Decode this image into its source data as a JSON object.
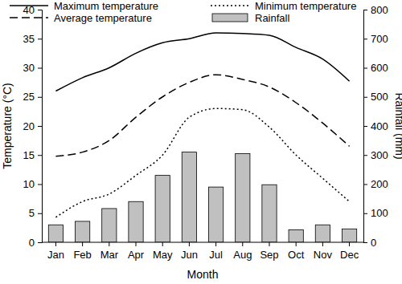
{
  "chart_data": {
    "type": "bar",
    "x_label": "Month",
    "y_label": "Temperature (°C)",
    "y2_label": "Rainfall (mm)",
    "categories": [
      "Jan",
      "Feb",
      "Mar",
      "Apr",
      "May",
      "Jun",
      "Jul",
      "Aug",
      "Sep",
      "Oct",
      "Nov",
      "Dec"
    ],
    "series": [
      {
        "name": "Maximum temperature",
        "type": "line",
        "color": "#000000",
        "line_style": "solid",
        "values": [
          26,
          28.3,
          30,
          32.5,
          34.3,
          35,
          36,
          35.9,
          35.6,
          33.5,
          31.5,
          27.7
        ]
      },
      {
        "name": "Average temperature",
        "type": "line",
        "color": "#000000",
        "line_style": "dashed",
        "values": [
          14.8,
          15.5,
          17.5,
          21.5,
          25,
          27.5,
          28.8,
          28,
          26.7,
          24,
          20.5,
          16.5
        ]
      },
      {
        "name": "Minimum temperature",
        "type": "line",
        "color": "#000000",
        "line_style": "dotted",
        "values": [
          4.3,
          7,
          8.3,
          11.5,
          15,
          21.5,
          23,
          22.8,
          19.8,
          15,
          11,
          7
        ]
      },
      {
        "name": "Rainfall",
        "type": "bar",
        "color": "#c0c0c0",
        "axis": "y2",
        "values": [
          60,
          72,
          116,
          140,
          230,
          310,
          190,
          305,
          198,
          43,
          60,
          46
        ]
      }
    ],
    "ylim": [
      0,
      40
    ],
    "yticks": [
      0,
      5,
      10,
      15,
      20,
      25,
      30,
      35,
      40
    ],
    "y2lim": [
      0,
      800
    ],
    "y2ticks": [
      0,
      100,
      200,
      300,
      400,
      500,
      600,
      700,
      800
    ],
    "legend": "top",
    "grid": false
  }
}
